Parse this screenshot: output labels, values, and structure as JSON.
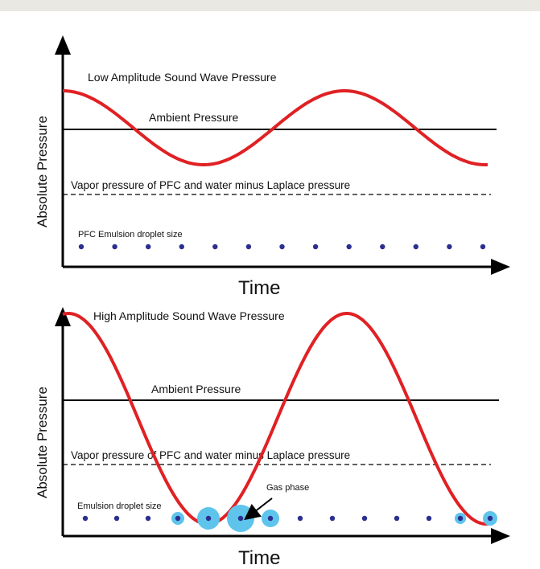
{
  "panels": [
    {
      "id": "low",
      "wave_label": "Low Amplitude Sound Wave Pressure",
      "ambient_label": "Ambient Pressure",
      "vapor_label": "Vapor pressure of PFC and water minus Laplace pressure",
      "droplet_label": "PFC Emulsion droplet size",
      "y_label": "Absolute Pressure",
      "x_label": "Time",
      "wave_color": "#e02124",
      "droplet_color": "#2b2f8f",
      "droplet_count": 13
    },
    {
      "id": "high",
      "wave_label": "High Amplitude Sound Wave Pressure",
      "ambient_label": "Ambient Pressure",
      "vapor_label": "Vapor pressure of PFC and water minus Laplace pressure",
      "droplet_label": "Emulsion droplet size",
      "gas_label": "Gas phase",
      "y_label": "Absolute Pressure",
      "x_label": "Time",
      "wave_color": "#e02124",
      "droplet_color": "#2b2f8f",
      "bubble_color": "#5ec4ec",
      "droplet_count": 14
    }
  ]
}
